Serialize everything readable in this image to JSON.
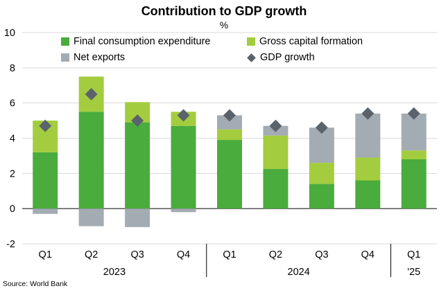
{
  "chart_data": {
    "type": "bar",
    "title": "Contribution to GDP growth",
    "subtitle": "%",
    "source": "Source: World Bank",
    "ylim": [
      -2,
      10
    ],
    "yticks": [
      "-2",
      "0",
      "2",
      "4",
      "6",
      "8",
      "10"
    ],
    "categories": [
      "Q1",
      "Q2",
      "Q3",
      "Q4",
      "Q1",
      "Q2",
      "Q3",
      "Q4",
      "Q1"
    ],
    "groups": [
      {
        "label": "2023",
        "span": 4
      },
      {
        "label": "2024",
        "span": 4
      },
      {
        "label": "'25",
        "span": 1
      }
    ],
    "series": [
      {
        "name": "Final consumption expenditure",
        "color": "#4aac3c",
        "values": [
          3.2,
          5.5,
          4.9,
          4.7,
          3.9,
          2.25,
          1.4,
          1.6,
          2.8
        ]
      },
      {
        "name": "Gross capital formation",
        "color": "#a3cd3e",
        "values": [
          1.8,
          2.0,
          1.15,
          0.8,
          0.6,
          1.9,
          1.2,
          1.3,
          0.5
        ]
      },
      {
        "name": "Net exports",
        "color": "#a3acb3",
        "values": [
          -0.3,
          -1.0,
          -1.05,
          -0.2,
          0.8,
          0.55,
          2.0,
          2.5,
          2.1
        ]
      }
    ],
    "line": {
      "name": "GDP growth",
      "color": "#5a636b",
      "values": [
        4.7,
        6.5,
        5.0,
        5.3,
        5.3,
        4.7,
        4.6,
        5.4,
        5.4
      ]
    }
  }
}
